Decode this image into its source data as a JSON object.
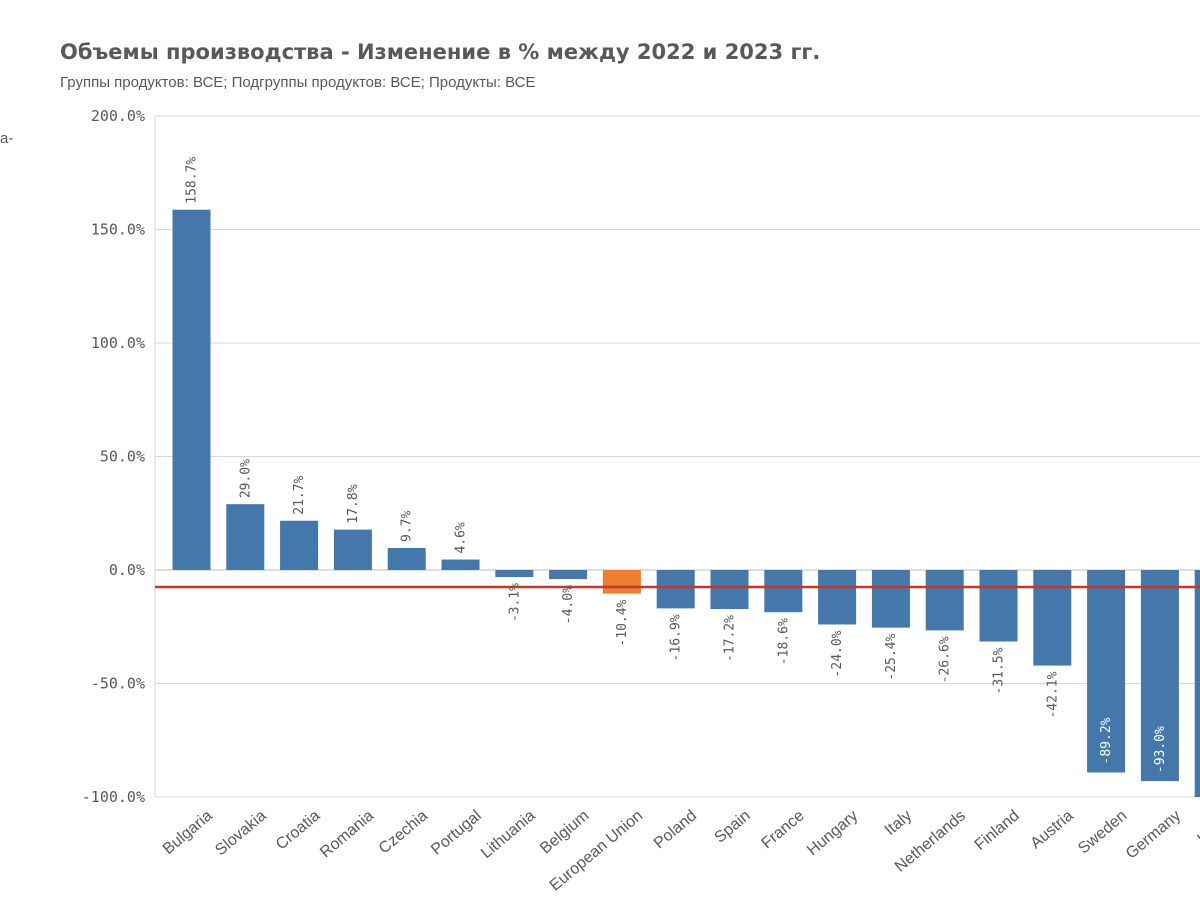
{
  "title": "Объемы производства - Изменение в % между 2022 и 2023 гг.",
  "subtitle": "Группы продуктов: ВСЕ; Подгруппы продуктов: ВСЕ; Продукты: ВСЕ",
  "left_fragment": "a-",
  "colors": {
    "bar": "#4477aa",
    "highlight": "#ed7d31",
    "reference_line": "#c0392b",
    "grid": "#d9d9d9",
    "text": "#595959"
  },
  "chart_data": {
    "type": "bar",
    "categories": [
      "Bulgaria",
      "Slovakia",
      "Croatia",
      "Romania",
      "Czechia",
      "Portugal",
      "Lithuania",
      "Belgium",
      "European Union",
      "Poland",
      "Spain",
      "France",
      "Hungary",
      "Italy",
      "Netherlands",
      "Finland",
      "Austria",
      "Sweden",
      "Germany",
      "Latvia"
    ],
    "values": [
      158.7,
      29.0,
      21.7,
      17.8,
      9.7,
      4.6,
      -3.1,
      -4.0,
      -10.4,
      -16.9,
      -17.2,
      -18.6,
      -24.0,
      -25.4,
      -26.6,
      -31.5,
      -42.1,
      -89.2,
      -93.0,
      -100.0
    ],
    "data_labels": [
      "158.7%",
      "29.0%",
      "21.7%",
      "17.8%",
      "9.7%",
      "4.6%",
      "-3.1%",
      "-4.0%",
      "-10.4%",
      "-16.9%",
      "-17.2%",
      "-18.6%",
      "-24.0%",
      "-25.4%",
      "-26.6%",
      "-31.5%",
      "-42.1%",
      "-89.2%",
      "-93.0%",
      ""
    ],
    "highlight_category": "European Union",
    "ylim": [
      -100,
      200
    ],
    "yticks": [
      200,
      150,
      100,
      50,
      0,
      -50,
      -100
    ],
    "ytick_labels": [
      "200.0%",
      "150.0%",
      "100.0%",
      "50.0%",
      "0.0%",
      "-50.0%",
      "-100.0%"
    ],
    "reference_line_value": -7.5,
    "grid": true,
    "xlabel": "",
    "ylabel": ""
  }
}
